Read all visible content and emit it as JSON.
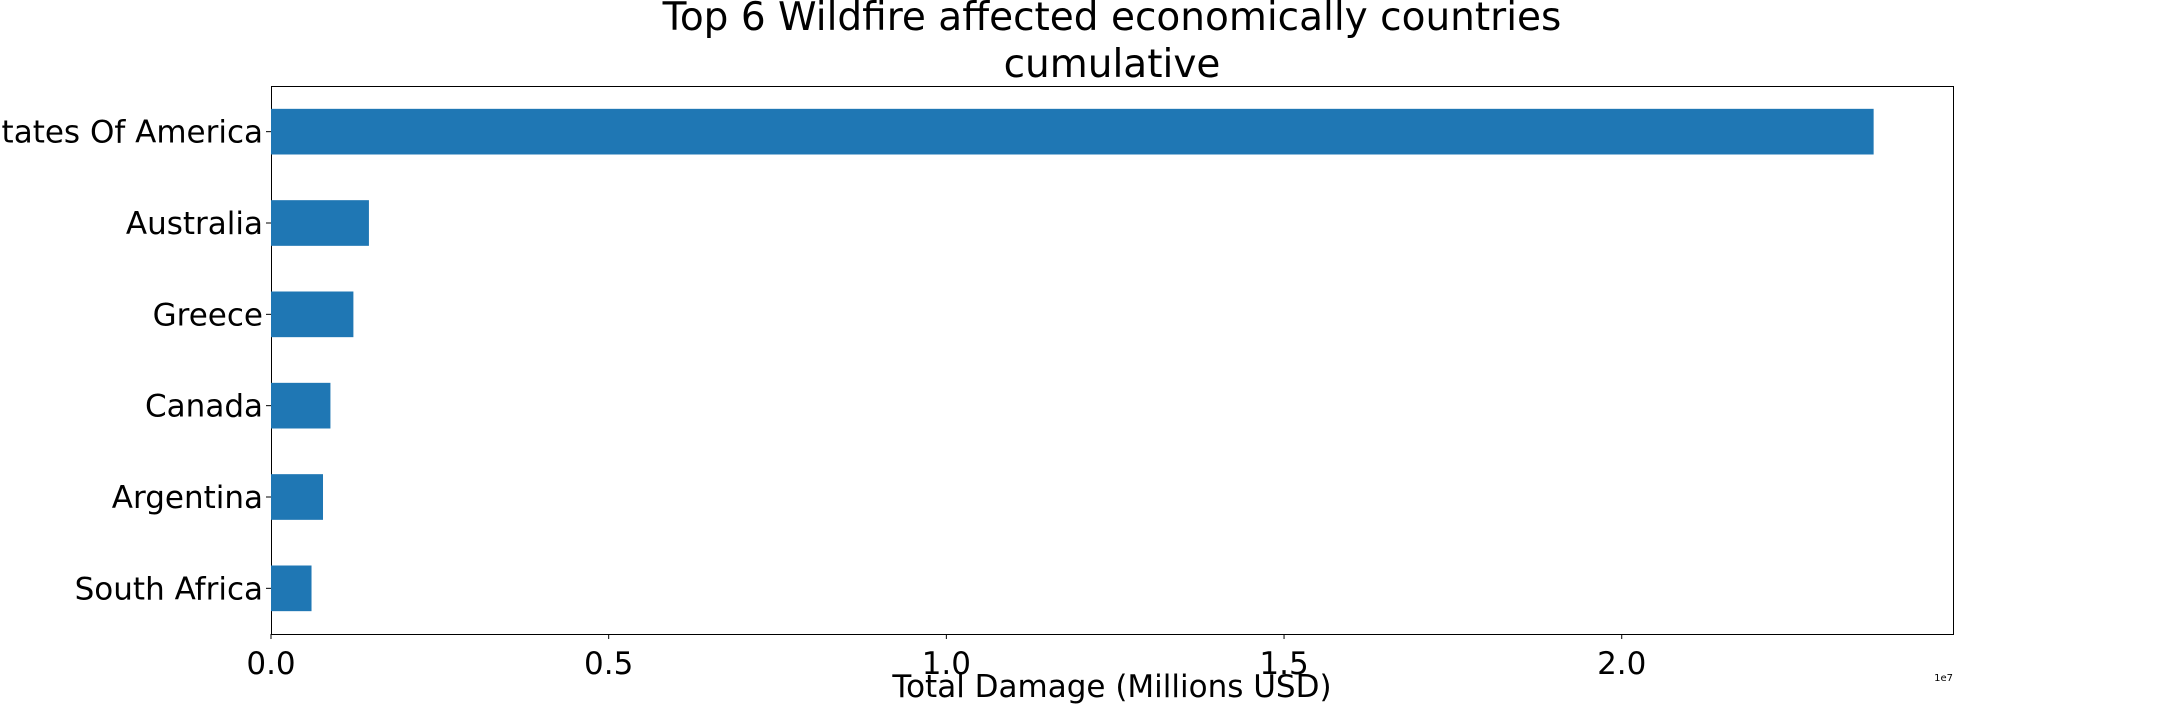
{
  "chart_data": {
    "type": "bar",
    "orientation": "horizontal",
    "title_lines": [
      "Top 6 Wildfire affected economically countries",
      "cumulative"
    ],
    "categories": [
      "United States Of America",
      "Australia",
      "Greece",
      "Canada",
      "Argentina",
      "South Africa"
    ],
    "values": [
      23730000,
      1450000,
      1220000,
      880000,
      770000,
      600000
    ],
    "xlabel": "Total Damage (Millions USD)",
    "ylabel": "",
    "xlim": [
      0,
      24920000
    ],
    "xticks": [
      0,
      5000000,
      10000000,
      15000000,
      20000000
    ],
    "xtick_labels": [
      "0.0",
      "0.5",
      "1.0",
      "1.5",
      "2.0"
    ],
    "offset_label": "1e7",
    "bar_color": "#1f77b4",
    "grid": false,
    "legend": "none"
  }
}
